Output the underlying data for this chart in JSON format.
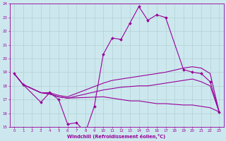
{
  "x": [
    0,
    1,
    2,
    3,
    4,
    5,
    6,
    7,
    8,
    9,
    10,
    11,
    12,
    13,
    14,
    15,
    16,
    17,
    18,
    19,
    20,
    21,
    22,
    23
  ],
  "line_main": [
    18.9,
    18.1,
    null,
    16.8,
    17.5,
    17.0,
    15.2,
    15.3,
    14.6,
    16.5,
    20.3,
    21.5,
    21.4,
    22.6,
    23.8,
    22.8,
    23.2,
    23.0,
    null,
    19.2,
    19.0,
    18.9,
    18.3,
    16.1
  ],
  "line_a": [
    18.9,
    18.1,
    null,
    17.5,
    17.5,
    17.3,
    17.2,
    null,
    null,
    null,
    null,
    null,
    null,
    null,
    null,
    null,
    null,
    19.3,
    null,
    19.5,
    null,
    null,
    null,
    16.1
  ],
  "smooth1_x": [
    0,
    1,
    3,
    4,
    5,
    6,
    10,
    11,
    12,
    13,
    14,
    15,
    16,
    17,
    19,
    20,
    21,
    22,
    23
  ],
  "smooth1_y": [
    18.9,
    18.1,
    17.5,
    17.5,
    17.3,
    17.2,
    18.2,
    18.4,
    18.5,
    18.6,
    18.7,
    18.8,
    18.9,
    19.0,
    19.3,
    19.4,
    19.3,
    18.9,
    16.1
  ],
  "smooth2_x": [
    0,
    1,
    3,
    4,
    5,
    6,
    10,
    11,
    12,
    13,
    14,
    15,
    16,
    17,
    19,
    20,
    21,
    22,
    23
  ],
  "smooth2_y": [
    18.9,
    18.1,
    17.5,
    17.4,
    17.2,
    17.1,
    17.7,
    17.8,
    17.9,
    17.95,
    18.0,
    18.0,
    18.1,
    18.2,
    18.4,
    18.5,
    18.3,
    18.0,
    16.1
  ],
  "smooth3_x": [
    0,
    1,
    3,
    4,
    5,
    6,
    10,
    11,
    12,
    13,
    14,
    15,
    16,
    17,
    19,
    20,
    21,
    22,
    23
  ],
  "smooth3_y": [
    18.9,
    18.1,
    17.5,
    17.4,
    17.2,
    17.1,
    17.2,
    17.1,
    17.0,
    16.9,
    16.9,
    16.8,
    16.7,
    16.7,
    16.6,
    16.6,
    16.5,
    16.4,
    16.1
  ],
  "xlim": [
    -0.5,
    23.5
  ],
  "ylim": [
    15,
    24
  ],
  "yticks": [
    15,
    16,
    17,
    18,
    19,
    20,
    21,
    22,
    23,
    24
  ],
  "xticks": [
    0,
    1,
    2,
    3,
    4,
    5,
    6,
    7,
    8,
    9,
    10,
    11,
    12,
    13,
    14,
    15,
    16,
    17,
    18,
    19,
    20,
    21,
    22,
    23
  ],
  "xlabel": "Windchill (Refroidissement éolien,°C)",
  "line_color": "#990099",
  "bg_color": "#cce8ee",
  "grid_color": "#aacccc"
}
